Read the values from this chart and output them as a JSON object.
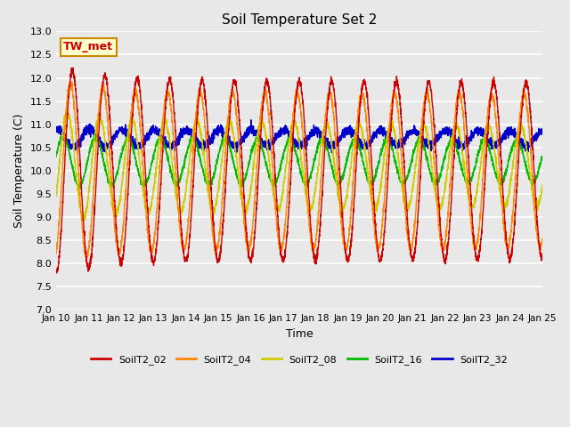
{
  "title": "Soil Temperature Set 2",
  "xlabel": "Time",
  "ylabel": "Soil Temperature (C)",
  "ylim": [
    7.0,
    13.0
  ],
  "yticks": [
    7.0,
    7.5,
    8.0,
    8.5,
    9.0,
    9.5,
    10.0,
    10.5,
    11.0,
    11.5,
    12.0,
    12.5,
    13.0
  ],
  "colors": {
    "SoilT2_02": "#cc0000",
    "SoilT2_04": "#ff8800",
    "SoilT2_08": "#cccc00",
    "SoilT2_16": "#00bb00",
    "SoilT2_32": "#0000cc"
  },
  "lw": 1.0,
  "annotation_text": "TW_met",
  "annotation_color": "#cc0000",
  "annotation_bg": "#ffffcc",
  "annotation_border": "#cc8800",
  "background_color": "#e8e8e8",
  "grid_color": "#ffffff",
  "legend_labels": [
    "SoilT2_02",
    "SoilT2_04",
    "SoilT2_08",
    "SoilT2_16",
    "SoilT2_32"
  ]
}
